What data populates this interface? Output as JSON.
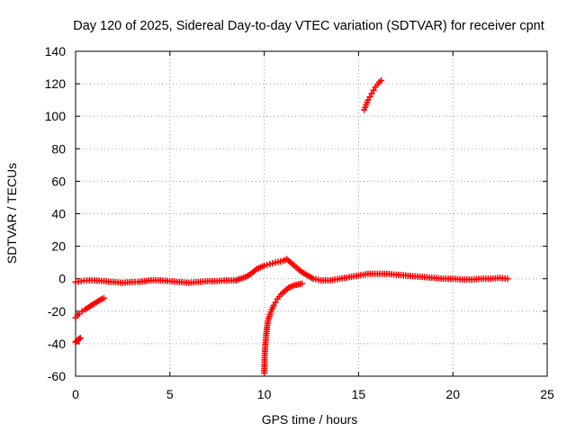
{
  "chart_data": {
    "type": "scatter",
    "title": "Day 120 of 2025, Sidereal Day-to-day VTEC variation (SDTVAR) for receiver cpnt",
    "xlabel": "GPS time / hours",
    "ylabel": "SDTVAR / TECUs",
    "xlim": [
      0,
      25
    ],
    "ylim": [
      -60,
      140
    ],
    "xticks": [
      "0",
      "5",
      "10",
      "15",
      "20",
      "25"
    ],
    "yticks": [
      "-60",
      "-40",
      "-20",
      "0",
      "20",
      "40",
      "60",
      "80",
      "100",
      "120",
      "140"
    ],
    "grid": true,
    "marker": "plus",
    "color": "#ff0000",
    "series": [
      {
        "name": "baseline",
        "x": [
          0,
          0.3,
          0.6,
          1.0,
          1.5,
          2.0,
          2.5,
          3.0,
          3.3,
          4.0,
          4.5,
          5.0,
          5.5,
          6.0,
          6.5,
          7.0,
          7.5,
          8.0,
          8.5,
          9.0,
          9.3,
          9.6,
          9.8,
          10.0,
          10.3,
          10.6,
          11.0,
          11.2,
          11.4,
          11.6,
          11.8,
          12.0,
          12.3,
          12.6,
          13.0,
          13.5,
          14.0,
          14.5,
          15.0,
          15.5,
          16.0,
          16.5,
          17.0,
          17.5,
          18.0,
          18.5,
          19.0,
          19.5,
          20.0,
          20.5,
          21.0,
          21.5,
          22.0,
          22.5,
          22.9
        ],
        "y": [
          -2,
          -1.5,
          -1,
          -1,
          -1.5,
          -2,
          -2.5,
          -2,
          -2,
          -1,
          -1,
          -1.5,
          -2,
          -2.5,
          -2,
          -1.5,
          -1.5,
          -1,
          -1,
          1,
          3,
          6,
          7,
          8,
          9,
          10,
          11,
          12,
          10,
          8,
          6,
          4,
          2,
          0,
          -1,
          -1,
          0,
          1,
          2,
          3,
          3,
          3,
          2.5,
          2,
          1.5,
          1,
          0.5,
          0,
          0,
          -0.5,
          -0.5,
          0,
          0,
          0.5,
          0
        ]
      },
      {
        "name": "early-descending-arc",
        "x": [
          0,
          0.1,
          0.2,
          0.35,
          0.5,
          0.7,
          0.9,
          1.1,
          1.3,
          1.5
        ],
        "y": [
          -24,
          -22.5,
          -21.5,
          -20,
          -19,
          -17.5,
          -16,
          -14.5,
          -13,
          -12
        ]
      },
      {
        "name": "early-low-segment",
        "x": [
          0,
          0.05,
          0.1,
          0.15,
          0.2,
          0.25
        ],
        "y": [
          -39,
          -38.5,
          -38,
          -37.5,
          -37,
          -36.5
        ]
      },
      {
        "name": "recovery-arc",
        "x": [
          10.0,
          10.02,
          10.05,
          10.1,
          10.15,
          10.2,
          10.3,
          10.4,
          10.5,
          10.6,
          10.7,
          10.8,
          10.9,
          11.0,
          11.1,
          11.2,
          11.3,
          11.4,
          11.5,
          11.6,
          11.7,
          11.8,
          11.9,
          12.0
        ],
        "y": [
          -58,
          -50,
          -42,
          -35,
          -30,
          -26,
          -22,
          -19,
          -16.5,
          -14.5,
          -12.5,
          -11,
          -9.5,
          -8.5,
          -7.5,
          -6.5,
          -5.5,
          -5,
          -4.5,
          -4,
          -3.8,
          -3.5,
          -3.2,
          -3
        ]
      },
      {
        "name": "high-segment",
        "x": [
          15.3,
          15.4,
          15.5,
          15.6,
          15.7,
          15.8,
          15.9,
          16.0,
          16.1,
          16.2
        ],
        "y": [
          104,
          107,
          110,
          112,
          114,
          116,
          118,
          119.5,
          121,
          122
        ]
      }
    ]
  }
}
